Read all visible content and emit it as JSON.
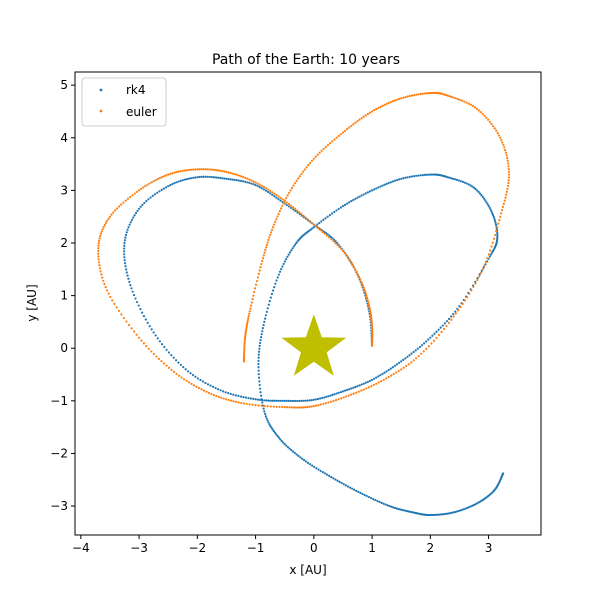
{
  "chart_data": {
    "type": "scatter",
    "title": "Path of the Earth: 10 years",
    "xlabel": "x [AU]",
    "ylabel": "y [AU]",
    "xlim": [
      -4.1,
      3.9
    ],
    "ylim": [
      -3.55,
      5.25
    ],
    "xticks": [
      -4,
      -3,
      -2,
      -1,
      0,
      1,
      2,
      3
    ],
    "yticks": [
      -3,
      -2,
      -1,
      0,
      1,
      2,
      3,
      4,
      5
    ],
    "tick_labels_x": [
      "−4",
      "−3",
      "−2",
      "−1",
      "0",
      "1",
      "2",
      "3"
    ],
    "tick_labels_y": [
      "−3",
      "−2",
      "−1",
      "0",
      "1",
      "2",
      "3",
      "4",
      "5"
    ],
    "grid": false,
    "legend": {
      "placement": "top-left",
      "entries": [
        "rk4",
        "euler"
      ]
    },
    "colors": {
      "rk4": "#1f77b4",
      "euler": "#ff7f0e",
      "sun": "#bfbf00"
    },
    "sun": {
      "x": 0,
      "y": 0,
      "marker": "star"
    },
    "series": [
      {
        "name": "rk4",
        "color": "#1f77b4",
        "path": [
          [
            1.0,
            0.05
          ],
          [
            0.95,
            0.7
          ],
          [
            0.75,
            1.4
          ],
          [
            0.4,
            2.0
          ],
          [
            0.0,
            2.35
          ],
          [
            -0.5,
            2.75
          ],
          [
            -1.0,
            3.1
          ],
          [
            -1.5,
            3.22
          ],
          [
            -2.0,
            3.25
          ],
          [
            -2.5,
            3.08
          ],
          [
            -3.0,
            2.65
          ],
          [
            -3.25,
            2.0
          ],
          [
            -3.15,
            1.2
          ],
          [
            -2.75,
            0.3
          ],
          [
            -2.2,
            -0.4
          ],
          [
            -1.6,
            -0.8
          ],
          [
            -1.0,
            -0.97
          ],
          [
            -0.5,
            -1.0
          ],
          [
            0.0,
            -0.98
          ],
          [
            0.5,
            -0.82
          ],
          [
            1.0,
            -0.6
          ],
          [
            1.5,
            -0.25
          ],
          [
            2.0,
            0.2
          ],
          [
            2.5,
            0.8
          ],
          [
            3.0,
            1.7
          ],
          [
            3.15,
            2.1
          ],
          [
            3.05,
            2.6
          ],
          [
            2.75,
            3.05
          ],
          [
            2.3,
            3.25
          ],
          [
            2.0,
            3.3
          ],
          [
            1.5,
            3.22
          ],
          [
            1.0,
            3.0
          ],
          [
            0.5,
            2.7
          ],
          [
            0.0,
            2.3
          ],
          [
            -0.3,
            2.0
          ],
          [
            -0.6,
            1.4
          ],
          [
            -0.85,
            0.5
          ],
          [
            -0.95,
            -0.3
          ],
          [
            -0.85,
            -1.2
          ],
          [
            -0.6,
            -1.7
          ],
          [
            -0.2,
            -2.1
          ],
          [
            0.3,
            -2.45
          ],
          [
            0.8,
            -2.75
          ],
          [
            1.3,
            -3.0
          ],
          [
            1.7,
            -3.12
          ],
          [
            2.0,
            -3.17
          ],
          [
            2.4,
            -3.12
          ],
          [
            2.8,
            -2.95
          ],
          [
            3.1,
            -2.7
          ],
          [
            3.25,
            -2.38
          ]
        ]
      },
      {
        "name": "euler",
        "color": "#ff7f0e",
        "path": [
          [
            1.0,
            0.05
          ],
          [
            1.0,
            0.4
          ],
          [
            0.95,
            0.8
          ],
          [
            0.8,
            1.3
          ],
          [
            0.5,
            1.85
          ],
          [
            0.0,
            2.35
          ],
          [
            -0.5,
            2.8
          ],
          [
            -1.0,
            3.15
          ],
          [
            -1.5,
            3.35
          ],
          [
            -2.0,
            3.4
          ],
          [
            -2.5,
            3.3
          ],
          [
            -3.0,
            3.0
          ],
          [
            -3.5,
            2.5
          ],
          [
            -3.7,
            1.9
          ],
          [
            -3.55,
            1.1
          ],
          [
            -3.0,
            0.2
          ],
          [
            -2.4,
            -0.45
          ],
          [
            -1.8,
            -0.85
          ],
          [
            -1.2,
            -1.05
          ],
          [
            -0.5,
            -1.12
          ],
          [
            0.0,
            -1.1
          ],
          [
            0.6,
            -0.9
          ],
          [
            1.2,
            -0.6
          ],
          [
            1.8,
            -0.15
          ],
          [
            2.4,
            0.6
          ],
          [
            2.9,
            1.5
          ],
          [
            3.2,
            2.5
          ],
          [
            3.35,
            3.3
          ],
          [
            3.2,
            4.0
          ],
          [
            2.8,
            4.55
          ],
          [
            2.3,
            4.8
          ],
          [
            2.0,
            4.85
          ],
          [
            1.5,
            4.75
          ],
          [
            1.0,
            4.5
          ],
          [
            0.5,
            4.1
          ],
          [
            0.0,
            3.6
          ],
          [
            -0.4,
            3.0
          ],
          [
            -0.7,
            2.3
          ],
          [
            -0.9,
            1.6
          ],
          [
            -1.1,
            0.7
          ],
          [
            -1.18,
            0.2
          ],
          [
            -1.2,
            -0.25
          ]
        ]
      }
    ]
  }
}
